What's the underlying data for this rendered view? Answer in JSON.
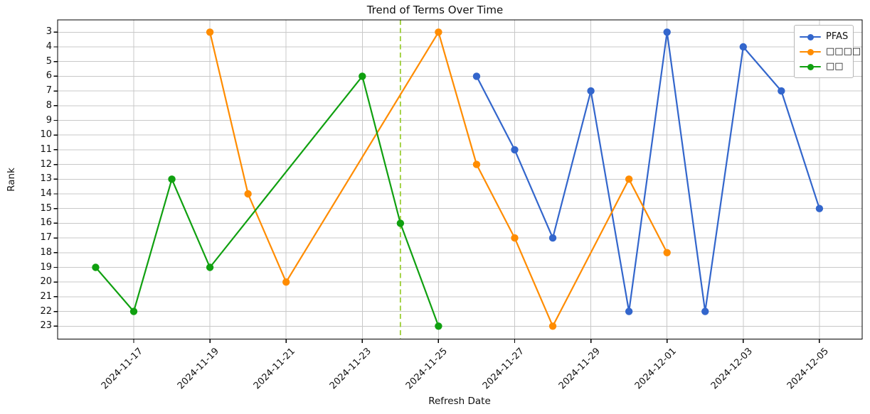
{
  "page": {
    "background": "#ffffff"
  },
  "chart_data": {
    "type": "line",
    "title": "Trend of Terms Over Time",
    "xlabel": "Refresh Date",
    "ylabel": "Rank",
    "grid": true,
    "legend_position": "upper right",
    "y_axis": {
      "inverted": true,
      "ticks": [
        3,
        4,
        5,
        6,
        7,
        8,
        9,
        10,
        11,
        12,
        13,
        14,
        15,
        16,
        17,
        18,
        19,
        20,
        21,
        22,
        23
      ]
    },
    "x_axis": {
      "tick_labels": [
        "2024-11-17",
        "2024-11-19",
        "2024-11-21",
        "2024-11-23",
        "2024-11-25",
        "2024-11-27",
        "2024-11-29",
        "2024-12-01",
        "2024-12-03",
        "2024-12-05"
      ]
    },
    "series": [
      {
        "name": "PFAS",
        "color": "#3366cc",
        "points": [
          {
            "date": "2024-11-26",
            "rank": 6
          },
          {
            "date": "2024-11-27",
            "rank": 11
          },
          {
            "date": "2024-11-28",
            "rank": 17
          },
          {
            "date": "2024-11-29",
            "rank": 7
          },
          {
            "date": "2024-11-30",
            "rank": 22
          },
          {
            "date": "2024-12-01",
            "rank": 3
          },
          {
            "date": "2024-12-02",
            "rank": 22
          },
          {
            "date": "2024-12-03",
            "rank": 4
          },
          {
            "date": "2024-12-04",
            "rank": 7
          },
          {
            "date": "2024-12-05",
            "rank": 15
          }
        ]
      },
      {
        "name": "□□□□",
        "color": "#ff8c00",
        "points": [
          {
            "date": "2024-11-19",
            "rank": 3
          },
          {
            "date": "2024-11-20",
            "rank": 14
          },
          {
            "date": "2024-11-21",
            "rank": 20
          },
          {
            "date": "2024-11-25",
            "rank": 3
          },
          {
            "date": "2024-11-26",
            "rank": 12
          },
          {
            "date": "2024-11-27",
            "rank": 17
          },
          {
            "date": "2024-11-28",
            "rank": 23
          },
          {
            "date": "2024-11-30",
            "rank": 13
          },
          {
            "date": "2024-12-01",
            "rank": 18
          }
        ]
      },
      {
        "name": "□□",
        "color": "#10a010",
        "points": [
          {
            "date": "2024-11-16",
            "rank": 19
          },
          {
            "date": "2024-11-17",
            "rank": 22
          },
          {
            "date": "2024-11-18",
            "rank": 13
          },
          {
            "date": "2024-11-19",
            "rank": 19
          },
          {
            "date": "2024-11-23",
            "rank": 6
          },
          {
            "date": "2024-11-24",
            "rank": 16
          },
          {
            "date": "2024-11-25",
            "rank": 23
          }
        ]
      }
    ],
    "vline": {
      "date": "2024-11-24",
      "color": "#9acd32",
      "style": "dashed"
    }
  }
}
